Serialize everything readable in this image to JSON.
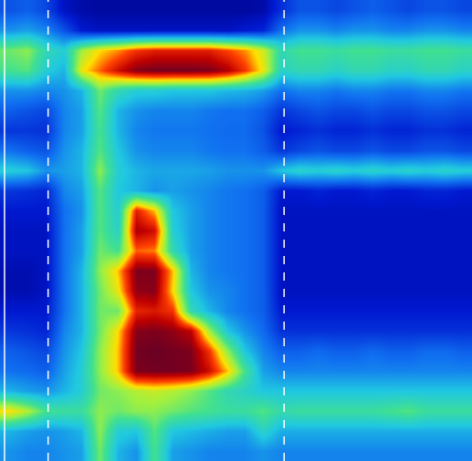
{
  "chart_data": {
    "type": "heatmap",
    "tick_labels": false,
    "grid": false,
    "xlim": [
      -0.5,
      25.5
    ],
    "ylim": [
      22.5,
      -0.5
    ],
    "zlim": [
      0,
      100
    ],
    "vlines": [
      -0.25,
      2.15,
      15.15
    ],
    "cells": [
      [
        20,
        22,
        18,
        8,
        5,
        4,
        4,
        4,
        4,
        4,
        4,
        4,
        4,
        4,
        5,
        14,
        20,
        20,
        18,
        20,
        22,
        20,
        18,
        20,
        20,
        18
      ],
      [
        30,
        32,
        28,
        20,
        10,
        8,
        8,
        8,
        8,
        8,
        8,
        8,
        8,
        10,
        12,
        25,
        30,
        30,
        28,
        30,
        30,
        28,
        28,
        30,
        30,
        28
      ],
      [
        55,
        58,
        45,
        40,
        60,
        70,
        75,
        82,
        85,
        85,
        85,
        85,
        80,
        75,
        65,
        45,
        50,
        50,
        48,
        50,
        50,
        48,
        48,
        50,
        50,
        48
      ],
      [
        50,
        52,
        40,
        35,
        68,
        78,
        88,
        96,
        98,
        98,
        98,
        97,
        92,
        82,
        68,
        42,
        45,
        45,
        42,
        45,
        45,
        42,
        42,
        45,
        45,
        42
      ],
      [
        30,
        30,
        28,
        30,
        35,
        55,
        45,
        40,
        40,
        38,
        38,
        38,
        36,
        35,
        32,
        25,
        28,
        28,
        26,
        28,
        28,
        26,
        26,
        28,
        28,
        26
      ],
      [
        22,
        20,
        18,
        28,
        32,
        52,
        35,
        30,
        28,
        28,
        28,
        26,
        25,
        25,
        22,
        15,
        18,
        20,
        18,
        18,
        20,
        18,
        18,
        20,
        20,
        18
      ],
      [
        15,
        15,
        14,
        28,
        32,
        50,
        35,
        28,
        26,
        26,
        26,
        25,
        24,
        24,
        20,
        10,
        12,
        14,
        12,
        12,
        14,
        12,
        12,
        14,
        14,
        12
      ],
      [
        25,
        22,
        20,
        30,
        35,
        52,
        38,
        30,
        28,
        28,
        28,
        26,
        25,
        25,
        22,
        15,
        18,
        20,
        18,
        18,
        20,
        18,
        18,
        20,
        20,
        18
      ],
      [
        40,
        38,
        30,
        32,
        35,
        58,
        40,
        35,
        33,
        33,
        33,
        32,
        30,
        30,
        30,
        38,
        42,
        40,
        42,
        40,
        42,
        40,
        42,
        40,
        42,
        40
      ],
      [
        15,
        14,
        12,
        28,
        32,
        52,
        38,
        35,
        30,
        32,
        30,
        28,
        26,
        25,
        22,
        10,
        10,
        12,
        10,
        10,
        12,
        10,
        10,
        12,
        12,
        10
      ],
      [
        10,
        10,
        10,
        25,
        30,
        52,
        40,
        85,
        72,
        38,
        32,
        28,
        26,
        25,
        22,
        8,
        8,
        8,
        8,
        8,
        8,
        8,
        8,
        8,
        8,
        8
      ],
      [
        8,
        8,
        8,
        25,
        32,
        52,
        42,
        92,
        88,
        40,
        32,
        28,
        26,
        25,
        22,
        8,
        8,
        8,
        8,
        8,
        8,
        8,
        8,
        8,
        8,
        8
      ],
      [
        8,
        8,
        8,
        25,
        32,
        55,
        50,
        78,
        76,
        45,
        32,
        28,
        26,
        25,
        22,
        8,
        8,
        8,
        8,
        8,
        8,
        8,
        8,
        8,
        8,
        8
      ],
      [
        6,
        6,
        8,
        25,
        35,
        58,
        72,
        97,
        97,
        72,
        35,
        28,
        26,
        25,
        22,
        8,
        8,
        8,
        8,
        8,
        8,
        8,
        8,
        8,
        8,
        8
      ],
      [
        6,
        6,
        8,
        25,
        35,
        55,
        68,
        95,
        96,
        70,
        38,
        30,
        28,
        25,
        22,
        8,
        8,
        8,
        8,
        8,
        8,
        8,
        8,
        8,
        8,
        8
      ],
      [
        10,
        10,
        10,
        25,
        35,
        55,
        55,
        84,
        86,
        82,
        45,
        35,
        28,
        25,
        22,
        10,
        10,
        10,
        10,
        10,
        10,
        10,
        10,
        10,
        10,
        10
      ],
      [
        15,
        14,
        12,
        28,
        35,
        55,
        70,
        96,
        97,
        95,
        90,
        60,
        38,
        30,
        24,
        14,
        14,
        14,
        14,
        14,
        14,
        14,
        14,
        14,
        14,
        14
      ],
      [
        22,
        20,
        18,
        30,
        38,
        58,
        72,
        98,
        99,
        98,
        97,
        82,
        58,
        38,
        28,
        22,
        22,
        24,
        22,
        22,
        24,
        22,
        22,
        24,
        24,
        22
      ],
      [
        25,
        24,
        22,
        32,
        40,
        58,
        72,
        97,
        98,
        98,
        97,
        88,
        72,
        50,
        32,
        28,
        28,
        28,
        28,
        28,
        28,
        28,
        28,
        28,
        28,
        28
      ],
      [
        35,
        32,
        30,
        35,
        40,
        55,
        58,
        62,
        64,
        62,
        58,
        52,
        45,
        42,
        38,
        38,
        38,
        38,
        38,
        38,
        38,
        38,
        38,
        38,
        38,
        38
      ],
      [
        70,
        62,
        50,
        48,
        48,
        58,
        55,
        58,
        58,
        55,
        52,
        50,
        48,
        48,
        52,
        46,
        48,
        48,
        48,
        48,
        48,
        50,
        52,
        48,
        48,
        48
      ],
      [
        35,
        32,
        30,
        32,
        35,
        58,
        40,
        38,
        52,
        38,
        36,
        34,
        32,
        32,
        42,
        34,
        34,
        34,
        34,
        34,
        34,
        34,
        34,
        34,
        34,
        34
      ],
      [
        30,
        28,
        28,
        30,
        32,
        55,
        35,
        30,
        50,
        32,
        30,
        28,
        28,
        28,
        30,
        28,
        28,
        28,
        28,
        28,
        28,
        28,
        28,
        28,
        28,
        28
      ]
    ]
  }
}
